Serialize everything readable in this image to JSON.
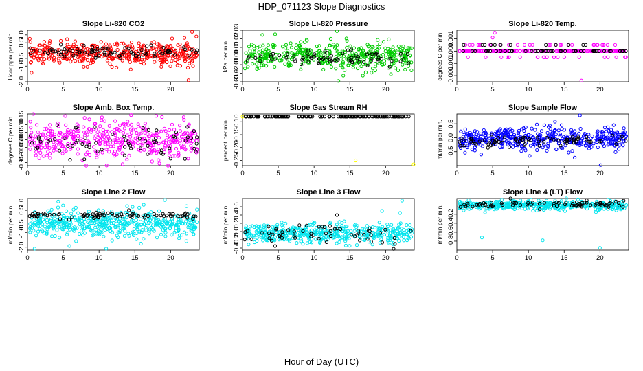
{
  "figure": {
    "title": "HDP_071123  Slope Diagnostics",
    "xlabel": "Hour of Day (UTC)"
  },
  "chart_data": [
    {
      "type": "scatter",
      "title": "Slope Li-820 CO2",
      "ylabel": "Licor ppm per min.",
      "xlim": [
        0,
        24
      ],
      "ylim": [
        -2.0,
        1.3
      ],
      "xticks": [
        0,
        5,
        10,
        15,
        20
      ],
      "yticks": [
        -2.0,
        -1.0,
        -0.5,
        0.5,
        1.0
      ],
      "ytick_labels": [
        "-2.0",
        "-1.0",
        "-0.5",
        "0.5",
        "1.0"
      ],
      "series": [
        {
          "name": "all",
          "color": "#ff0000",
          "n": 420,
          "center": -0.2,
          "spread": 0.35,
          "pattern": "normal",
          "outliers": [
            [
              23.0,
              1.2
            ],
            [
              22.5,
              -1.9
            ],
            [
              23.6,
              0.9
            ]
          ]
        },
        {
          "name": "highlight",
          "color": "#000000",
          "n": 90,
          "center": -0.1,
          "spread": 0.2,
          "pattern": "normal",
          "outliers": []
        }
      ]
    },
    {
      "type": "scatter",
      "title": "Slope Li-820 Pressure",
      "ylabel": "kPa per min.",
      "xlim": [
        0,
        24
      ],
      "ylim": [
        -0.03,
        0.03
      ],
      "xticks": [
        0,
        5,
        10,
        15,
        20
      ],
      "yticks": [
        -0.03,
        -0.02,
        -0.01,
        0.0,
        0.01,
        0.02,
        0.03
      ],
      "ytick_labels": [
        "-0.03",
        "-0.02",
        "-0.01",
        "0.00",
        "0.01",
        "0.02",
        "0.03"
      ],
      "series": [
        {
          "name": "all",
          "color": "#00cc00",
          "n": 420,
          "center": 0.0,
          "spread": 0.008,
          "pattern": "normal",
          "outliers": [
            [
              13.2,
              0.029
            ],
            [
              13.4,
              -0.029
            ]
          ]
        },
        {
          "name": "highlight",
          "color": "#000000",
          "n": 80,
          "center": -0.002,
          "spread": 0.004,
          "pattern": "normal",
          "outliers": []
        }
      ]
    },
    {
      "type": "scatter",
      "title": "Slope Li-820 Temp.",
      "ylabel": "degrees C per min.",
      "xlim": [
        0,
        24
      ],
      "ylim": [
        -0.0025,
        0.0017
      ],
      "xticks": [
        0,
        5,
        10,
        15,
        20
      ],
      "yticks": [
        -0.002,
        -0.001,
        0.0,
        0.001
      ],
      "ytick_labels": [
        "-0.002",
        "-0.001",
        "0.000",
        "0.001"
      ],
      "series": [
        {
          "name": "all",
          "color": "#ff00ff",
          "n": 240,
          "center": 0.0,
          "spread": 0.0005,
          "pattern": "levels",
          "levels": [
            0.0,
            0.0005,
            -0.0005
          ],
          "outliers": [
            [
              5.3,
              0.0015
            ],
            [
              17.4,
              -0.0024
            ],
            [
              5.0,
              0.0011
            ]
          ]
        },
        {
          "name": "highlight",
          "color": "#000000",
          "n": 60,
          "center": 0.0,
          "spread": 0.0,
          "pattern": "levels",
          "levels": [
            0.0,
            0.0005
          ],
          "outliers": []
        }
      ]
    },
    {
      "type": "scatter",
      "title": "Slope Amb. Box Temp.",
      "ylabel": "degrees C per min.",
      "xlim": [
        0,
        24
      ],
      "ylim": [
        -0.17,
        0.17
      ],
      "xticks": [
        0,
        5,
        10,
        15,
        20
      ],
      "yticks": [
        -0.15,
        -0.1,
        -0.05,
        0.0,
        0.05,
        0.1,
        0.15
      ],
      "ytick_labels": [
        "-0.15",
        "-0.10",
        "-0.05",
        "0.00",
        "0.05",
        "0.10",
        "0.15"
      ],
      "series": [
        {
          "name": "all",
          "color": "#ff00ff",
          "n": 420,
          "center": 0.0,
          "spread": 0.06,
          "pattern": "normal",
          "outliers": [
            [
              0.4,
              0.12
            ],
            [
              13.3,
              -0.16
            ]
          ]
        },
        {
          "name": "highlight",
          "color": "#000000",
          "n": 70,
          "center": 0.0,
          "spread": 0.05,
          "pattern": "normal",
          "outliers": []
        }
      ]
    },
    {
      "type": "scatter",
      "title": "Slope Gas Stream RH",
      "ylabel": "percent per min.",
      "xlim": [
        0,
        24
      ],
      "ylim": [
        -0.27,
        -0.07
      ],
      "xticks": [
        0,
        5,
        10,
        15,
        20
      ],
      "yticks": [
        -0.25,
        -0.2,
        -0.15,
        -0.1
      ],
      "ytick_labels": [
        "-0.25",
        "-0.20",
        "-0.15",
        "-0.10"
      ],
      "series": [
        {
          "name": "all",
          "color": "#ffff00",
          "n": 0,
          "center": -0.08,
          "spread": 0.0,
          "pattern": "normal",
          "outliers": [
            [
              0.0,
              -0.08
            ],
            [
              15.8,
              -0.25
            ],
            [
              23.9,
              -0.265
            ]
          ]
        },
        {
          "name": "highlight",
          "color": "#000000",
          "n": 130,
          "center": -0.08,
          "spread": 0.0,
          "pattern": "line",
          "outliers": []
        }
      ]
    },
    {
      "type": "scatter",
      "title": "Slope Sample Flow",
      "ylabel": "ml/min per min.",
      "xlim": [
        0,
        24
      ],
      "ylim": [
        -1.0,
        0.85
      ],
      "xticks": [
        0,
        5,
        10,
        15,
        20
      ],
      "yticks": [
        -0.5,
        0.0,
        0.5
      ],
      "ytick_labels": [
        "-0.5",
        "0.0",
        "0.5"
      ],
      "series": [
        {
          "name": "all",
          "color": "#0000ff",
          "n": 460,
          "center": -0.05,
          "spread": 0.2,
          "pattern": "normal",
          "outliers": [
            [
              17.2,
              0.8
            ],
            [
              20.1,
              -0.98
            ],
            [
              3.4,
              -0.6
            ]
          ]
        },
        {
          "name": "highlight",
          "color": "#000000",
          "n": 80,
          "center": -0.1,
          "spread": 0.1,
          "pattern": "normal",
          "outliers": []
        }
      ]
    },
    {
      "type": "scatter",
      "title": "Slope Line 2 Flow",
      "ylabel": "ml/min per min.",
      "xlim": [
        0,
        24
      ],
      "ylim": [
        -2.2,
        1.3
      ],
      "xticks": [
        0,
        5,
        10,
        15,
        20
      ],
      "yticks": [
        -2.0,
        -1.0,
        -0.5,
        0.5,
        1.0
      ],
      "ytick_labels": [
        "-2.0",
        "-1.0",
        "-0.5",
        "0.5",
        "1.0"
      ],
      "series": [
        {
          "name": "all",
          "color": "#00e5ee",
          "n": 460,
          "center": -0.4,
          "spread": 0.45,
          "pattern": "normal",
          "outliers": [
            [
              1.0,
              -2.1
            ],
            [
              11.0,
              -2.1
            ],
            [
              19.2,
              1.2
            ],
            [
              4.3,
              1.1
            ]
          ]
        },
        {
          "name": "highlight",
          "color": "#000000",
          "n": 90,
          "center": 0.15,
          "spread": 0.1,
          "pattern": "normal",
          "outliers": []
        }
      ]
    },
    {
      "type": "scatter",
      "title": "Slope Line 3 Flow",
      "ylabel": "ml/min per min.",
      "xlim": [
        0,
        24
      ],
      "ylim": [
        -0.45,
        0.8
      ],
      "xticks": [
        0,
        5,
        10,
        15,
        20
      ],
      "yticks": [
        -0.4,
        -0.2,
        0.0,
        0.2,
        0.4,
        0.6
      ],
      "ytick_labels": [
        "-0.4",
        "-0.2",
        "0.0",
        "0.2",
        "0.4",
        "0.6"
      ],
      "series": [
        {
          "name": "all",
          "color": "#00e5ee",
          "n": 460,
          "center": -0.05,
          "spread": 0.12,
          "pattern": "normal",
          "outliers": [
            [
              22.3,
              0.75
            ],
            [
              22.0,
              0.45
            ],
            [
              19.5,
              0.5
            ]
          ]
        },
        {
          "name": "highlight",
          "color": "#000000",
          "n": 60,
          "center": -0.05,
          "spread": 0.12,
          "pattern": "normal",
          "outliers": [
            [
              13.2,
              0.4
            ]
          ]
        }
      ]
    },
    {
      "type": "scatter",
      "title": "Slope Line 4 (LT) Flow",
      "ylabel": "ml/min per min.",
      "xlim": [
        0,
        24
      ],
      "ylim": [
        -1.0,
        0.15
      ],
      "xticks": [
        0,
        5,
        10,
        15,
        20
      ],
      "yticks": [
        -0.8,
        -0.6,
        -0.4,
        -0.2
      ],
      "ytick_labels": [
        "-0.8",
        "-0.6",
        "-0.4",
        "-0.2"
      ],
      "series": [
        {
          "name": "all",
          "color": "#00e5ee",
          "n": 420,
          "center": 0.0,
          "spread": 0.05,
          "pattern": "normal",
          "outliers": [
            [
              3.5,
              -0.72
            ],
            [
              12.0,
              -0.78
            ],
            [
              20.0,
              -0.95
            ]
          ]
        },
        {
          "name": "highlight",
          "color": "#000000",
          "n": 80,
          "center": 0.02,
          "spread": 0.04,
          "pattern": "normal",
          "outliers": []
        }
      ]
    }
  ]
}
